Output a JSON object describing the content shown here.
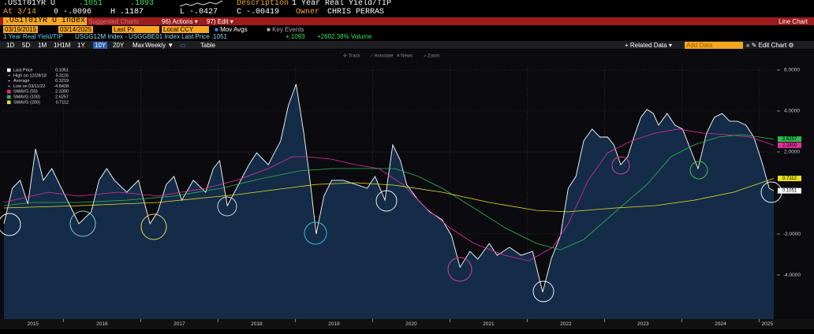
{
  "header": {
    "ticker": ".US1T01YR U",
    "last": ".1051",
    "last_alt": ".1093",
    "description_label": "Description",
    "description": "1 Year Real Yield/TIP",
    "at": "At 3/14",
    "open": "0 -.0096",
    "high": "H .1187",
    "low": "L -.0427",
    "close": "C -.00419",
    "owner_label": "Owner",
    "owner": "CHRIS PERRAS"
  },
  "menu": {
    "security": ".US1T01YR U Index",
    "suggested": "Suggested Charts",
    "actions": "96) Actions ▾",
    "edit": "97) Edit ▾",
    "chart_type": "Line Chart"
  },
  "settings": {
    "start": "03/19/2015",
    "end": "03/14/2025",
    "field": "Last Px",
    "currency": "Local CCY",
    "mov_avgs": "Mov Avgs",
    "key_events": "Key Events"
  },
  "info": {
    "name": "1 Year Real Yield/TIP",
    "formula": "USGG12M Index - USGGBE01 Index Last Price .1051",
    "change": "+.1093",
    "volume": "+2602.38% Volume"
  },
  "toolbar": {
    "ranges": [
      {
        "label": "1D"
      },
      {
        "label": "5D"
      },
      {
        "label": "1M"
      },
      {
        "label": "1H1M"
      },
      {
        "label": "1Y"
      },
      {
        "label": "10Y",
        "selected": true
      },
      {
        "label": "20Y"
      },
      {
        "label": "Max"
      }
    ],
    "frequency": "Weekly ▼",
    "table": "Table",
    "related": "+ Related Data ▾",
    "add_data": "Add Data",
    "edit_chart": "« ✎ Edit Chart ⚙"
  },
  "chart_tools": [
    "✢ Track",
    "⟋ Annotate",
    "≡ News",
    "⌕ Zoom"
  ],
  "chart_data": {
    "type": "line",
    "grid": true,
    "fill_color": "#15304f",
    "xlim": [
      2015.21,
      2025.21
    ],
    "xticks": [
      2015,
      2016,
      2017,
      2018,
      2019,
      2020,
      2021,
      2022,
      2023,
      2024,
      2025
    ],
    "ylim": [
      -6.15,
      6.15
    ],
    "yticks": [
      {
        "value": 6,
        "label": "6.0000"
      },
      {
        "value": 4,
        "label": "4.0000"
      },
      {
        "value": 2,
        "label": "2.0000"
      },
      {
        "value": -2,
        "label": "-2.0000"
      },
      {
        "value": -4,
        "label": "-4.0000"
      }
    ],
    "legend_stats": [
      {
        "label": "High on 12/28/18",
        "value": "5.3116"
      },
      {
        "label": "Average",
        "value": "0.3219"
      },
      {
        "label": "Low on 03/11/22",
        "value": "-4.8428"
      }
    ],
    "series": [
      {
        "name": "Last Price",
        "color": "#ffffff",
        "legend_value": "0.1051",
        "area": true,
        "x": [
          2015.23,
          2015.34,
          2015.44,
          2015.54,
          2015.64,
          2015.74,
          2015.85,
          2015.95,
          2016.1,
          2016.2,
          2016.36,
          2016.46,
          2016.56,
          2016.66,
          2016.82,
          2016.97,
          2017.12,
          2017.22,
          2017.33,
          2017.43,
          2017.53,
          2017.68,
          2017.84,
          2017.94,
          2018.02,
          2018.12,
          2018.24,
          2018.4,
          2018.5,
          2018.65,
          2018.81,
          2018.91,
          2019.01,
          2019.11,
          2019.19,
          2019.27,
          2019.37,
          2019.47,
          2019.62,
          2019.78,
          2019.93,
          2020.03,
          2020.16,
          2020.26,
          2020.36,
          2020.44,
          2020.59,
          2020.74,
          2020.9,
          2021.02,
          2021.13,
          2021.26,
          2021.36,
          2021.51,
          2021.61,
          2021.77,
          2021.92,
          2022.07,
          2022.2,
          2022.31,
          2022.43,
          2022.53,
          2022.63,
          2022.73,
          2022.84,
          2022.94,
          2023.04,
          2023.12,
          2023.21,
          2023.3,
          2023.38,
          2023.47,
          2023.55,
          2023.63,
          2023.7,
          2023.81,
          2023.91,
          2024.01,
          2024.11,
          2024.21,
          2024.32,
          2024.42,
          2024.52,
          2024.62,
          2024.72,
          2024.83,
          2024.93,
          2025.03,
          2025.13,
          2025.19
        ],
        "values": [
          -1.5,
          0.23,
          0.62,
          -0.54,
          2.15,
          0.62,
          1.19,
          0.42,
          -0.73,
          -1.5,
          -0.92,
          0.62,
          1.19,
          0.62,
          0.04,
          0.62,
          -1.5,
          -0.92,
          0.42,
          0.81,
          -0.35,
          0.62,
          0.04,
          1.19,
          1.58,
          -0.62,
          0.23,
          1.38,
          1.96,
          1.38,
          2.54,
          4.27,
          5.31,
          2.92,
          0.62,
          -2.0,
          -0.15,
          0.62,
          0.62,
          0.42,
          0.23,
          0.81,
          -0.35,
          2.35,
          1.58,
          0.42,
          -0.35,
          -0.92,
          -1.31,
          -2.08,
          -3.62,
          -2.85,
          -3.23,
          -2.46,
          -3.04,
          -2.65,
          -3.04,
          -2.85,
          -4.84,
          -3.23,
          -2.08,
          0.23,
          0.81,
          2.54,
          3.12,
          2.73,
          2.73,
          2.35,
          1.38,
          1.77,
          2.73,
          3.69,
          4.08,
          3.88,
          3.31,
          3.88,
          3.31,
          3.12,
          2.15,
          1.19,
          2.92,
          3.69,
          3.88,
          3.5,
          3.5,
          3.31,
          2.73,
          1.58,
          0.23,
          0.11
        ]
      },
      {
        "name": "SMAVG (50)",
        "color": "#e0309a",
        "legend_value": "2.3300",
        "x": [
          2015.23,
          2015.8,
          2016.2,
          2016.71,
          2017.22,
          2017.84,
          2018.24,
          2018.65,
          2018.96,
          2019.16,
          2019.47,
          2019.78,
          2020.08,
          2020.39,
          2020.69,
          2021.0,
          2021.31,
          2021.71,
          2022.02,
          2022.33,
          2022.53,
          2022.79,
          2023.04,
          2023.35,
          2023.65,
          2023.96,
          2024.27,
          2024.57,
          2024.88,
          2025.19
        ],
        "values": [
          -0.46,
          0.04,
          -0.15,
          0.04,
          -0.15,
          0.23,
          0.62,
          1.19,
          1.77,
          1.77,
          1.65,
          1.38,
          1.19,
          0.42,
          -0.73,
          -1.69,
          -2.46,
          -3.04,
          -3.31,
          -2.65,
          -1.5,
          0.62,
          1.96,
          2.54,
          2.92,
          3.12,
          2.92,
          2.85,
          2.73,
          2.33
        ]
      },
      {
        "name": "SMAVG (100)",
        "color": "#2fb84a",
        "legend_value": "2.6257",
        "x": [
          2015.23,
          2015.59,
          2016.2,
          2016.82,
          2017.43,
          2018.04,
          2018.55,
          2019.06,
          2019.47,
          2019.98,
          2020.29,
          2020.59,
          2020.9,
          2021.31,
          2021.71,
          2022.12,
          2022.43,
          2022.73,
          2023.14,
          2023.55,
          2023.86,
          2024.16,
          2024.47,
          2024.78,
          2025.19
        ],
        "values": [
          -0.62,
          -0.46,
          -0.46,
          -0.35,
          -0.15,
          0.23,
          0.69,
          1.08,
          1.19,
          1.19,
          1.19,
          0.81,
          0.23,
          -0.73,
          -1.69,
          -2.46,
          -2.77,
          -2.27,
          -0.92,
          0.42,
          1.77,
          2.35,
          2.73,
          2.85,
          2.63
        ]
      },
      {
        "name": "SMAVG (200)",
        "color": "#e8e020",
        "legend_value": "0.7112",
        "x": [
          2015.23,
          2016.2,
          2017.22,
          2018.24,
          2019.27,
          2019.78,
          2020.29,
          2020.9,
          2021.51,
          2022.12,
          2022.53,
          2023.14,
          2023.65,
          2024.16,
          2024.67,
          2025.19
        ],
        "values": [
          -0.73,
          -0.62,
          -0.46,
          -0.08,
          0.42,
          0.5,
          0.38,
          0.04,
          -0.46,
          -0.85,
          -0.92,
          -0.73,
          -0.62,
          -0.35,
          0.04,
          0.71
        ]
      }
    ]
  }
}
